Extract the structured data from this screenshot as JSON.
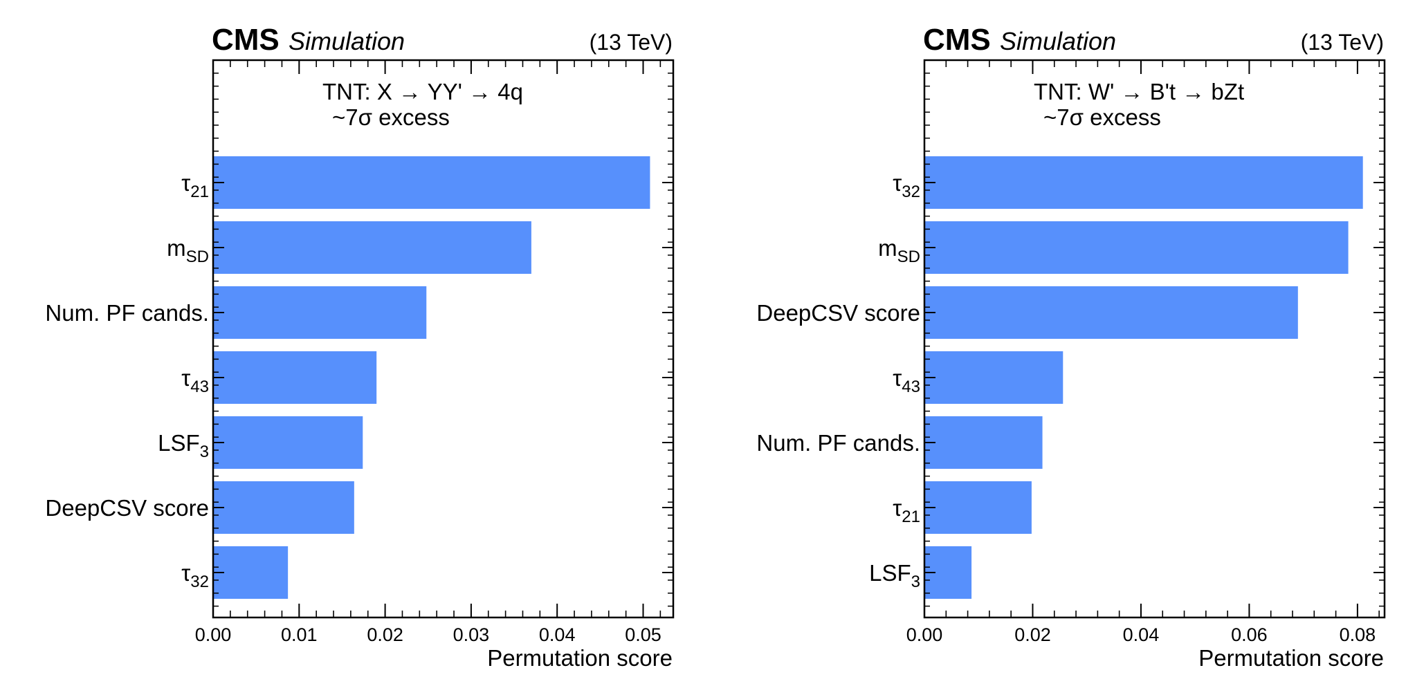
{
  "chart_data": [
    {
      "type": "bar",
      "orientation": "horizontal",
      "experiment": "CMS",
      "status": "Simulation",
      "energy": "(13 TeV)",
      "annotation": [
        "TNT: X → YY' → 4q",
        "~7σ excess"
      ],
      "categories": [
        {
          "base": "τ",
          "sub": "21"
        },
        {
          "base": "m",
          "sub": "SD"
        },
        {
          "base": "Num. PF cands.",
          "sub": ""
        },
        {
          "base": "τ",
          "sub": "43"
        },
        {
          "base": "LSF",
          "sub": "3"
        },
        {
          "base": "DeepCSV score",
          "sub": ""
        },
        {
          "base": "τ",
          "sub": "32"
        }
      ],
      "values": [
        0.0508,
        0.037,
        0.0248,
        0.019,
        0.0174,
        0.0164,
        0.0087
      ],
      "xlim": [
        0,
        0.0535
      ],
      "xticks": [
        "0.00",
        "0.01",
        "0.02",
        "0.03",
        "0.04",
        "0.05"
      ],
      "xtick_values": [
        0,
        0.01,
        0.02,
        0.03,
        0.04,
        0.05
      ],
      "xminor_step": 0.002,
      "xlabel": "Permutation score",
      "bar_color": "#5790fc"
    },
    {
      "type": "bar",
      "orientation": "horizontal",
      "experiment": "CMS",
      "status": "Simulation",
      "energy": "(13 TeV)",
      "annotation": [
        "TNT: W' → B't → bZt",
        "~7σ excess"
      ],
      "categories": [
        {
          "base": "τ",
          "sub": "32"
        },
        {
          "base": "m",
          "sub": "SD"
        },
        {
          "base": "DeepCSV score",
          "sub": ""
        },
        {
          "base": "τ",
          "sub": "43"
        },
        {
          "base": "Num. PF cands.",
          "sub": ""
        },
        {
          "base": "τ",
          "sub": "21"
        },
        {
          "base": "LSF",
          "sub": "3"
        }
      ],
      "values": [
        0.081,
        0.0783,
        0.069,
        0.0256,
        0.0218,
        0.0198,
        0.0087
      ],
      "xlim": [
        0,
        0.085
      ],
      "xticks": [
        "0.00",
        "0.02",
        "0.04",
        "0.06",
        "0.08"
      ],
      "xtick_values": [
        0,
        0.02,
        0.04,
        0.06,
        0.08
      ],
      "xminor_step": 0.004,
      "xlabel": "Permutation score",
      "bar_color": "#5790fc"
    }
  ]
}
